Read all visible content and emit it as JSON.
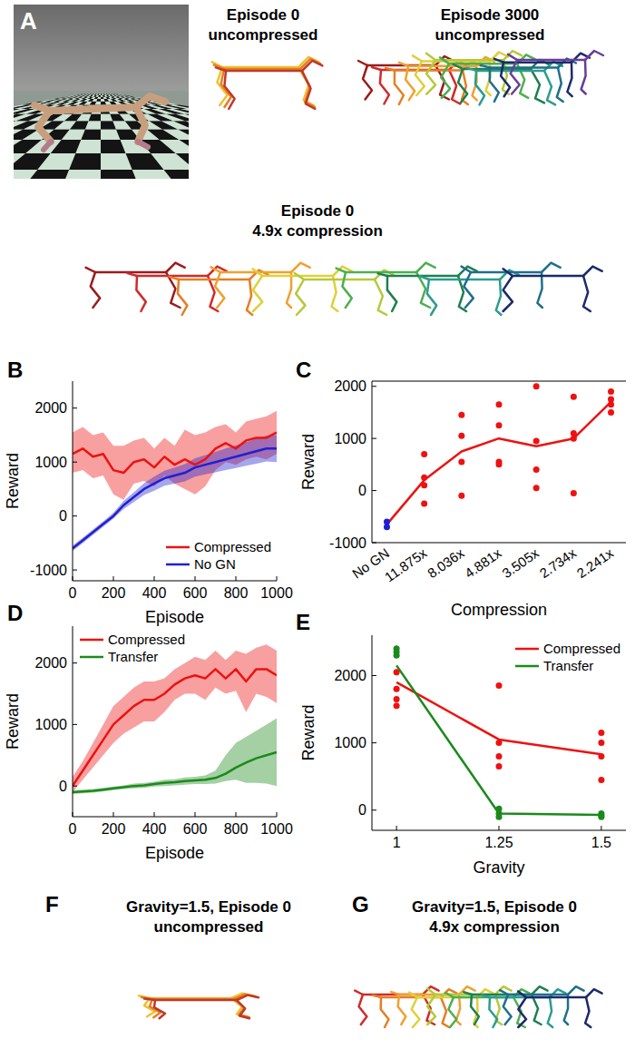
{
  "panel_a": {
    "letter": "A",
    "titles": [
      [
        "Episode 0",
        "uncompressed"
      ],
      [
        "Episode 3000",
        "uncompressed"
      ],
      [
        "Episode 0",
        "4.9x compression"
      ]
    ]
  },
  "chart_data": [
    {
      "letter": "B",
      "type": "line",
      "x_label": "Episode",
      "y_label": "Reward",
      "x": [
        0,
        50,
        100,
        150,
        200,
        250,
        300,
        350,
        400,
        450,
        500,
        550,
        600,
        650,
        700,
        750,
        800,
        850,
        900,
        950,
        1000
      ],
      "xlim": [
        0,
        1000
      ],
      "xticks": [
        0,
        200,
        400,
        600,
        800,
        1000
      ],
      "ylim": [
        -1200,
        2500
      ],
      "yticks": [
        -1000,
        0,
        1000,
        2000
      ],
      "grid": false,
      "legend": "lower right",
      "series": [
        {
          "name": "Compressed",
          "color": "#ee1111",
          "values": [
            1150,
            1250,
            1100,
            1150,
            850,
            800,
            1000,
            1050,
            900,
            1100,
            950,
            1050,
            950,
            1050,
            1250,
            1350,
            1250,
            1400,
            1450,
            1450,
            1550
          ],
          "lower": [
            800,
            850,
            700,
            750,
            400,
            300,
            600,
            650,
            550,
            750,
            600,
            500,
            400,
            550,
            850,
            1000,
            950,
            1050,
            1100,
            1050,
            1150
          ],
          "upper": [
            1550,
            1650,
            1500,
            1550,
            1300,
            1300,
            1400,
            1450,
            1250,
            1450,
            1300,
            1600,
            1500,
            1550,
            1650,
            1700,
            1550,
            1750,
            1800,
            1850,
            1950
          ]
        },
        {
          "name": "No GN",
          "color": "#2020d0",
          "values": [
            -600,
            -450,
            -300,
            -150,
            0,
            200,
            350,
            500,
            600,
            700,
            750,
            800,
            900,
            950,
            1000,
            1050,
            1100,
            1150,
            1200,
            1250,
            1250
          ],
          "lower": [
            -650,
            -500,
            -350,
            -200,
            -50,
            130,
            260,
            390,
            470,
            560,
            600,
            640,
            730,
            770,
            810,
            850,
            890,
            930,
            970,
            1010,
            1000
          ],
          "upper": [
            -550,
            -400,
            -250,
            -100,
            60,
            280,
            440,
            610,
            730,
            840,
            900,
            960,
            1070,
            1130,
            1190,
            1250,
            1310,
            1370,
            1430,
            1490,
            1500
          ]
        }
      ]
    },
    {
      "letter": "C",
      "type": "line",
      "x_label": "Compression",
      "y_label": "Reward",
      "categories": [
        "No GN",
        "11.875x",
        "8.036x",
        "4.881x",
        "3.505x",
        "2.734x",
        "2.241x"
      ],
      "ylim": [
        -1000,
        2100
      ],
      "yticks": [
        -1000,
        0,
        1000,
        2000
      ],
      "grid": false,
      "color": "#ee1111",
      "marker": "circle",
      "values": [
        -650,
        200,
        750,
        1000,
        850,
        1000,
        1700
      ],
      "points": [
        [
          -600,
          -700
        ],
        [
          700,
          250,
          100,
          -250
        ],
        [
          1450,
          1050,
          550,
          -100
        ],
        [
          1650,
          1250,
          550,
          500
        ],
        [
          2000,
          950,
          400,
          50
        ],
        [
          1800,
          1100,
          1000,
          -50
        ],
        [
          1900,
          1750,
          1650,
          1500
        ]
      ],
      "colors": [
        "#2020d0",
        "#ee1111",
        "#ee1111",
        "#ee1111",
        "#ee1111",
        "#ee1111",
        "#ee1111"
      ]
    },
    {
      "letter": "D",
      "type": "line",
      "x_label": "Episode",
      "y_label": "Reward",
      "x": [
        0,
        50,
        100,
        150,
        200,
        250,
        300,
        350,
        400,
        450,
        500,
        550,
        600,
        650,
        700,
        750,
        800,
        850,
        900,
        950,
        1000
      ],
      "xlim": [
        0,
        1000
      ],
      "xticks": [
        0,
        200,
        400,
        600,
        800,
        1000
      ],
      "ylim": [
        -500,
        2600
      ],
      "yticks": [
        0,
        1000,
        2000
      ],
      "grid": false,
      "legend": "upper left",
      "series": [
        {
          "name": "Compressed",
          "color": "#ee1111",
          "values": [
            0,
            250,
            500,
            750,
            1000,
            1150,
            1300,
            1400,
            1400,
            1500,
            1650,
            1750,
            1800,
            1750,
            1900,
            1750,
            1900,
            1700,
            1900,
            1900,
            1800
          ],
          "lower": [
            -100,
            100,
            300,
            500,
            700,
            850,
            950,
            1050,
            1050,
            1200,
            1400,
            1500,
            1500,
            1400,
            1600,
            1500,
            1550,
            1200,
            1500,
            1450,
            1350
          ],
          "upper": [
            150,
            400,
            700,
            1000,
            1300,
            1450,
            1600,
            1700,
            1700,
            1750,
            1900,
            2000,
            2100,
            2050,
            2200,
            2050,
            2200,
            2150,
            2250,
            2300,
            2200
          ]
        },
        {
          "name": "Transfer",
          "color": "#1b8a1b",
          "values": [
            -100,
            -90,
            -80,
            -60,
            -40,
            -20,
            0,
            10,
            30,
            50,
            60,
            80,
            90,
            100,
            130,
            200,
            300,
            380,
            450,
            500,
            550
          ],
          "lower": [
            -130,
            -120,
            -110,
            -90,
            -70,
            -50,
            -40,
            -30,
            -10,
            0,
            10,
            20,
            30,
            30,
            40,
            80,
            100,
            50,
            50,
            40,
            0
          ],
          "upper": [
            -70,
            -60,
            -50,
            -30,
            -10,
            10,
            40,
            50,
            70,
            100,
            110,
            140,
            150,
            170,
            250,
            500,
            700,
            800,
            900,
            1000,
            1100
          ]
        }
      ]
    },
    {
      "letter": "E",
      "type": "line",
      "x_label": "Gravity",
      "y_label": "Reward",
      "x": [
        1,
        1.25,
        1.5
      ],
      "xlim": [
        0.94,
        1.56
      ],
      "xticks": [
        1,
        1.25,
        1.5
      ],
      "ylim": [
        -300,
        2600
      ],
      "yticks": [
        0,
        1000,
        2000
      ],
      "grid": false,
      "legend": "upper right",
      "marker": "circle",
      "series": [
        {
          "name": "Compressed",
          "color": "#ee1111",
          "values": [
            1900,
            1050,
            830
          ],
          "points": [
            [
              2050,
              1800,
              1650,
              1550
            ],
            [
              1850,
              1000,
              800,
              650
            ],
            [
              1150,
              1000,
              800,
              450
            ]
          ]
        },
        {
          "name": "Transfer",
          "color": "#1b8a1b",
          "values": [
            2150,
            -50,
            -70
          ],
          "points": [
            [
              2400,
              2350,
              2300
            ],
            [
              20,
              -50,
              -100
            ],
            [
              -50,
              -80,
              -100
            ]
          ]
        }
      ]
    }
  ],
  "panel_f": {
    "letter": "F",
    "title": [
      "Gravity=1.5, Episode 0",
      "uncompressed"
    ]
  },
  "panel_g": {
    "letter": "G",
    "title": [
      "Gravity=1.5, Episode 0",
      "4.9x compression"
    ]
  }
}
